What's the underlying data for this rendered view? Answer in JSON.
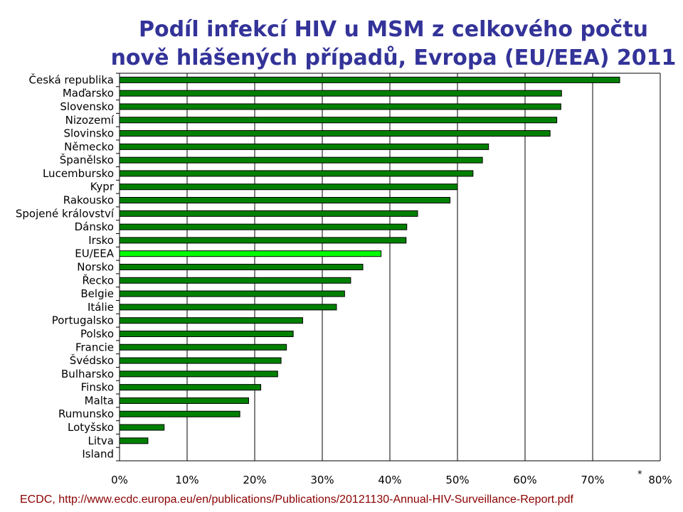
{
  "title": {
    "line1": "Podíl infekcí HIV u MSM z celkového počtu",
    "line2": "nově hlášených případů, Evropa (EU/EEA) 2011"
  },
  "source_note": "ECDC, http://www.ecdc.europa.eu/en/publications/Publications/20121130-Annual-HIV-Surveillance-Report.pdf",
  "footnote_marker": "*",
  "colors": {
    "bar": "#008000",
    "bar_highlight": "#00ff00",
    "bar_stroke": "#000000",
    "title": "#333399",
    "source": "#8b0000",
    "grid": "#000000"
  },
  "chart_data": {
    "type": "bar",
    "orientation": "horizontal",
    "categories": [
      "Česká republika",
      "Maďarsko",
      "Slovensko",
      "Nizozemí",
      "Slovinsko",
      "Německo",
      "Španělsko",
      "Lucembursko",
      "Kypr",
      "Rakousko",
      "Spojené království",
      "Dánsko",
      "Irsko",
      "EU/EEA",
      "Norsko",
      "Řecko",
      "Belgie",
      "Itálie",
      "Portugalsko",
      "Polsko",
      "Francie",
      "Švédsko",
      "Bulharsko",
      "Finsko",
      "Malta",
      "Rumunsko",
      "Lotyšsko",
      "Litva",
      "Island"
    ],
    "values": [
      74,
      65.4,
      65.3,
      64.7,
      63.7,
      54.6,
      53.7,
      52.3,
      50,
      48.9,
      44.1,
      42.5,
      42.4,
      38.7,
      36,
      34.2,
      33.3,
      32.1,
      27.1,
      25.7,
      24.7,
      23.9,
      23.4,
      20.9,
      19.1,
      17.8,
      6.6,
      4.2,
      0
    ],
    "highlight": "EU/EEA",
    "xlim": [
      0,
      80
    ],
    "xticks": [
      "0%",
      "10%",
      "20%",
      "30%",
      "40%",
      "50%",
      "60%",
      "70%",
      "80%"
    ],
    "grid": "vertical",
    "legend": "none"
  }
}
